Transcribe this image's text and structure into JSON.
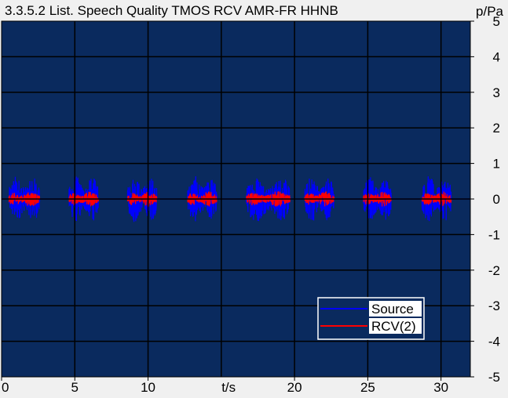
{
  "chart_data": {
    "type": "line",
    "title": "3.3.5.2 List. Speech Quality TMOS RCV AMR-FR HHNB",
    "xlabel": "t/s",
    "ylabel": "p/Pa",
    "xlim": [
      0,
      32
    ],
    "ylim": [
      -5,
      5
    ],
    "x_ticks": [
      0,
      5,
      10,
      20,
      25,
      30
    ],
    "y_ticks": [
      5,
      4,
      3,
      2,
      1,
      0,
      -1,
      -2,
      -3,
      -4,
      -5
    ],
    "grid": true,
    "background_color": "#0a2a5e",
    "legend_position": "bottom-right",
    "bursts": [
      {
        "start": 0.5,
        "end": 2.6
      },
      {
        "start": 4.6,
        "end": 6.6
      },
      {
        "start": 8.6,
        "end": 10.6
      },
      {
        "start": 12.7,
        "end": 14.7
      },
      {
        "start": 16.7,
        "end": 19.7
      },
      {
        "start": 20.7,
        "end": 22.7
      },
      {
        "start": 24.7,
        "end": 26.6
      },
      {
        "start": 28.7,
        "end": 30.7
      }
    ],
    "series": [
      {
        "name": "Source",
        "color": "#0000ff",
        "peak_amplitude": 0.8
      },
      {
        "name": "RCV(2)",
        "color": "#ff0000",
        "peak_amplitude": 0.25
      }
    ]
  }
}
